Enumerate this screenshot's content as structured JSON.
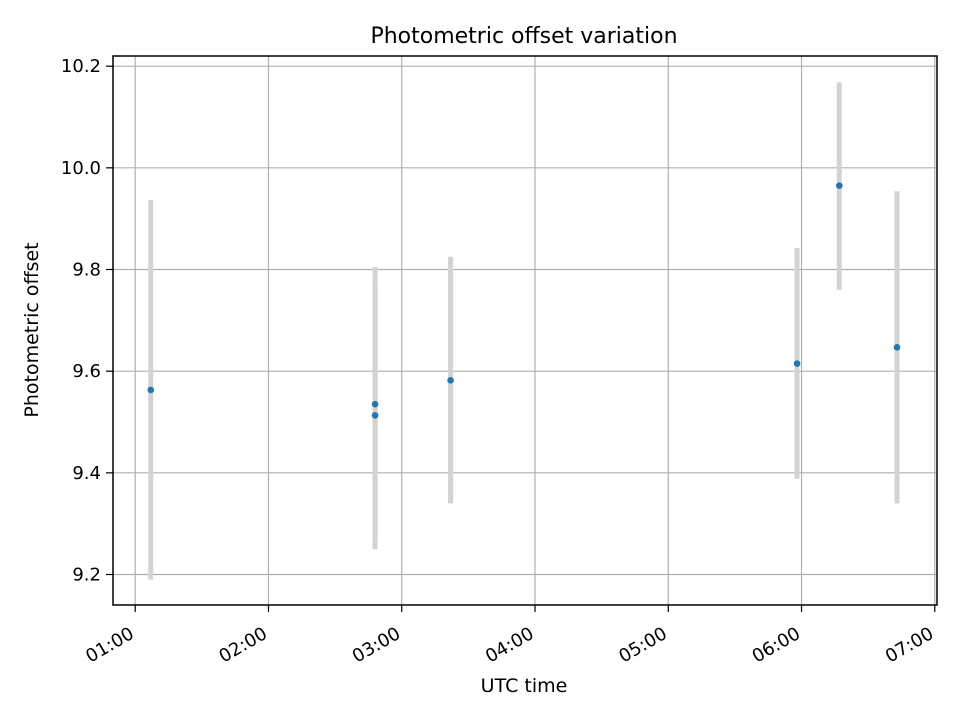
{
  "chart_data": {
    "type": "scatter",
    "title": "Photometric offset variation",
    "xlabel": "UTC time",
    "ylabel": "Photometric offset",
    "x_ticks": [
      "01:00",
      "02:00",
      "03:00",
      "04:00",
      "05:00",
      "06:00",
      "07:00"
    ],
    "y_ticks": [
      "9.2",
      "9.4",
      "9.6",
      "9.8",
      "10.0",
      "10.2"
    ],
    "xlim": [
      "00:50",
      "07:01"
    ],
    "ylim": [
      9.14,
      10.22
    ],
    "grid": true,
    "colors": {
      "point": "#1f77b4",
      "errorbar": "#d3d3d3",
      "grid": "#b0b0b0"
    },
    "points": [
      {
        "x": "01:07",
        "y": 9.563,
        "ylow": 9.19,
        "yhigh": 9.937
      },
      {
        "x": "02:48",
        "y": 9.535,
        "ylow": 9.265,
        "yhigh": 9.805
      },
      {
        "x": "02:48",
        "y": 9.513,
        "ylow": 9.25,
        "yhigh": 9.776
      },
      {
        "x": "03:22",
        "y": 9.582,
        "ylow": 9.34,
        "yhigh": 9.825
      },
      {
        "x": "05:58",
        "y": 9.615,
        "ylow": 9.388,
        "yhigh": 9.842
      },
      {
        "x": "06:17",
        "y": 9.965,
        "ylow": 9.76,
        "yhigh": 10.168
      },
      {
        "x": "06:43",
        "y": 9.647,
        "ylow": 9.34,
        "yhigh": 9.954
      }
    ]
  }
}
